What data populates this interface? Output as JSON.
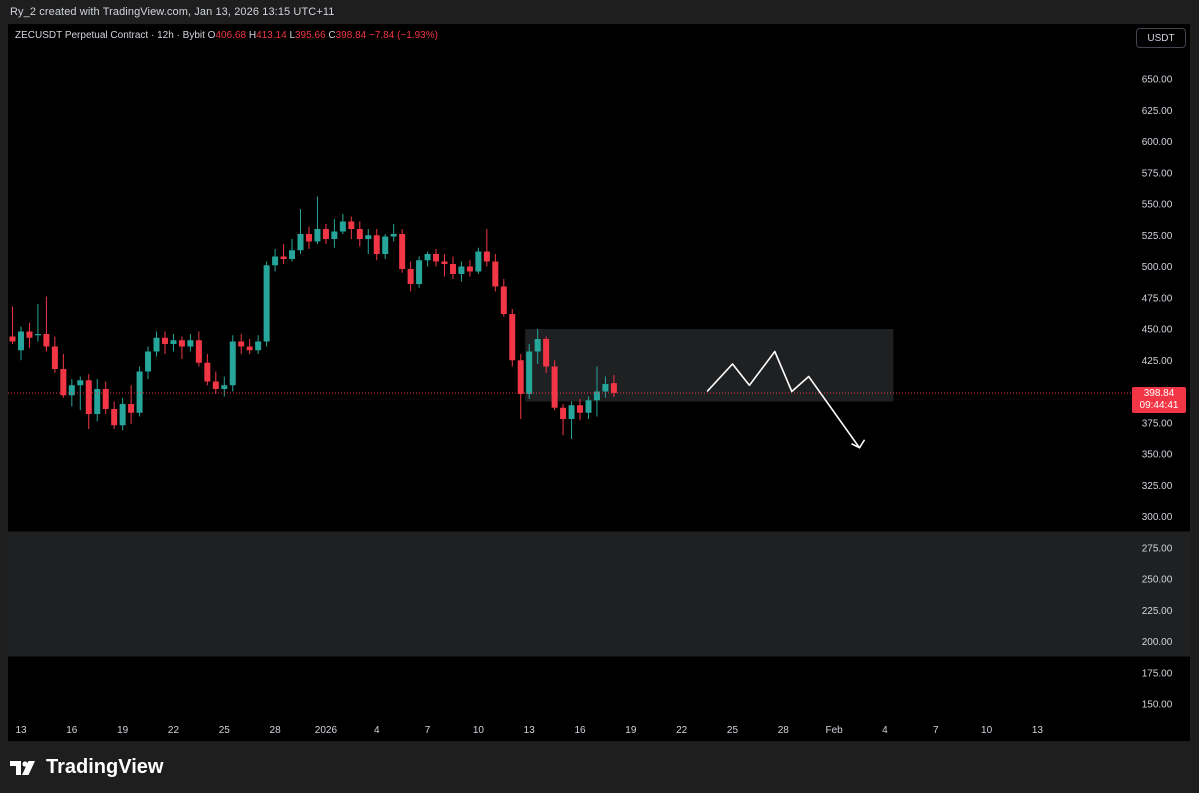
{
  "header": {
    "attribution": "Ry_2 created with TradingView.com, Jan 13, 2026 13:15 UTC+11"
  },
  "legend": {
    "symbol": "ZECUSDT Perpetual Contract · 12h · Bybit",
    "open_label": "O",
    "open": "406.68",
    "high_label": "H",
    "high": "413.14",
    "low_label": "L",
    "low": "395.66",
    "close_label": "C",
    "close": "398.84",
    "change": "−7.84 (−1.93%)"
  },
  "currency_button": "USDT",
  "price_tag": {
    "price": "398.84",
    "countdown": "09:44:41"
  },
  "footer": {
    "logo_text": "TradingView"
  },
  "colors": {
    "up": "#26a69a",
    "down": "#f23645",
    "zone": "#1f2022",
    "background": "#000000"
  },
  "chart_data": {
    "type": "candlestick",
    "interval": "12h",
    "y_axis": {
      "ticks": [
        "650.00",
        "625.00",
        "600.00",
        "575.00",
        "550.00",
        "525.00",
        "500.00",
        "475.00",
        "450.00",
        "425.00",
        "375.00",
        "350.00",
        "325.00",
        "300.00",
        "275.00",
        "250.00",
        "225.00",
        "200.00",
        "175.00",
        "150.00"
      ],
      "ylim": [
        138,
        672
      ]
    },
    "x_axis": {
      "ticks": [
        "13",
        "16",
        "19",
        "22",
        "25",
        "28",
        "2026",
        "4",
        "7",
        "10",
        "13",
        "16",
        "19",
        "22",
        "25",
        "28",
        "Feb",
        "4",
        "7",
        "10",
        "13"
      ],
      "tick_index": [
        0,
        6,
        12,
        18,
        24,
        30,
        36,
        42,
        48,
        54,
        60,
        66,
        72,
        78,
        84,
        90,
        96,
        102,
        108,
        114,
        120
      ]
    },
    "last_price": 398.84,
    "candles": [
      {
        "i": -5,
        "o": 398,
        "h": 425,
        "l": 395,
        "c": 420
      },
      {
        "i": -4,
        "o": 420,
        "h": 432,
        "l": 385,
        "c": 392
      },
      {
        "i": -3,
        "o": 392,
        "h": 432,
        "l": 388,
        "c": 428
      },
      {
        "i": -2,
        "o": 428,
        "h": 448,
        "l": 420,
        "c": 444
      },
      {
        "i": -1,
        "o": 444,
        "h": 468,
        "l": 438,
        "c": 440
      },
      {
        "i": 0,
        "o": 433,
        "h": 452,
        "l": 425,
        "c": 448
      },
      {
        "i": 1,
        "o": 448,
        "h": 455,
        "l": 435,
        "c": 443
      },
      {
        "i": 2,
        "o": 445,
        "h": 470,
        "l": 440,
        "c": 446
      },
      {
        "i": 3,
        "o": 446,
        "h": 476,
        "l": 432,
        "c": 436
      },
      {
        "i": 4,
        "o": 436,
        "h": 444,
        "l": 415,
        "c": 418
      },
      {
        "i": 5,
        "o": 418,
        "h": 430,
        "l": 395,
        "c": 397
      },
      {
        "i": 6,
        "o": 397,
        "h": 410,
        "l": 388,
        "c": 405
      },
      {
        "i": 7,
        "o": 405,
        "h": 412,
        "l": 385,
        "c": 409
      },
      {
        "i": 8,
        "o": 409,
        "h": 414,
        "l": 370,
        "c": 382
      },
      {
        "i": 9,
        "o": 382,
        "h": 410,
        "l": 376,
        "c": 402
      },
      {
        "i": 10,
        "o": 402,
        "h": 408,
        "l": 382,
        "c": 386
      },
      {
        "i": 11,
        "o": 386,
        "h": 392,
        "l": 370,
        "c": 373
      },
      {
        "i": 12,
        "o": 373,
        "h": 395,
        "l": 369,
        "c": 390
      },
      {
        "i": 13,
        "o": 390,
        "h": 405,
        "l": 374,
        "c": 383
      },
      {
        "i": 14,
        "o": 383,
        "h": 420,
        "l": 380,
        "c": 416
      },
      {
        "i": 15,
        "o": 416,
        "h": 436,
        "l": 410,
        "c": 432
      },
      {
        "i": 16,
        "o": 432,
        "h": 448,
        "l": 428,
        "c": 443
      },
      {
        "i": 17,
        "o": 443,
        "h": 448,
        "l": 430,
        "c": 438
      },
      {
        "i": 18,
        "o": 438,
        "h": 446,
        "l": 432,
        "c": 441
      },
      {
        "i": 19,
        "o": 441,
        "h": 444,
        "l": 426,
        "c": 436
      },
      {
        "i": 20,
        "o": 436,
        "h": 446,
        "l": 432,
        "c": 441
      },
      {
        "i": 21,
        "o": 441,
        "h": 448,
        "l": 420,
        "c": 423
      },
      {
        "i": 22,
        "o": 423,
        "h": 430,
        "l": 405,
        "c": 408
      },
      {
        "i": 23,
        "o": 408,
        "h": 416,
        "l": 398,
        "c": 402
      },
      {
        "i": 24,
        "o": 402,
        "h": 412,
        "l": 396,
        "c": 405
      },
      {
        "i": 25,
        "o": 405,
        "h": 445,
        "l": 400,
        "c": 440
      },
      {
        "i": 26,
        "o": 440,
        "h": 446,
        "l": 430,
        "c": 436
      },
      {
        "i": 27,
        "o": 436,
        "h": 442,
        "l": 430,
        "c": 433
      },
      {
        "i": 28,
        "o": 433,
        "h": 445,
        "l": 430,
        "c": 440
      },
      {
        "i": 29,
        "o": 440,
        "h": 504,
        "l": 436,
        "c": 501
      },
      {
        "i": 30,
        "o": 501,
        "h": 514,
        "l": 496,
        "c": 508
      },
      {
        "i": 31,
        "o": 508,
        "h": 518,
        "l": 502,
        "c": 506
      },
      {
        "i": 32,
        "o": 506,
        "h": 522,
        "l": 504,
        "c": 513
      },
      {
        "i": 33,
        "o": 513,
        "h": 546,
        "l": 510,
        "c": 526
      },
      {
        "i": 34,
        "o": 526,
        "h": 532,
        "l": 514,
        "c": 520
      },
      {
        "i": 35,
        "o": 520,
        "h": 556,
        "l": 518,
        "c": 530
      },
      {
        "i": 36,
        "o": 530,
        "h": 534,
        "l": 518,
        "c": 522
      },
      {
        "i": 37,
        "o": 522,
        "h": 538,
        "l": 515,
        "c": 528
      },
      {
        "i": 38,
        "o": 528,
        "h": 542,
        "l": 526,
        "c": 536
      },
      {
        "i": 39,
        "o": 536,
        "h": 540,
        "l": 522,
        "c": 530
      },
      {
        "i": 40,
        "o": 530,
        "h": 536,
        "l": 516,
        "c": 522
      },
      {
        "i": 41,
        "o": 522,
        "h": 530,
        "l": 510,
        "c": 525
      },
      {
        "i": 42,
        "o": 525,
        "h": 530,
        "l": 505,
        "c": 510
      },
      {
        "i": 43,
        "o": 510,
        "h": 526,
        "l": 506,
        "c": 524
      },
      {
        "i": 44,
        "o": 524,
        "h": 534,
        "l": 520,
        "c": 526
      },
      {
        "i": 45,
        "o": 526,
        "h": 530,
        "l": 495,
        "c": 498
      },
      {
        "i": 46,
        "o": 498,
        "h": 504,
        "l": 480,
        "c": 486
      },
      {
        "i": 47,
        "o": 486,
        "h": 508,
        "l": 483,
        "c": 505
      },
      {
        "i": 48,
        "o": 505,
        "h": 512,
        "l": 500,
        "c": 510
      },
      {
        "i": 49,
        "o": 510,
        "h": 514,
        "l": 500,
        "c": 504
      },
      {
        "i": 50,
        "o": 504,
        "h": 510,
        "l": 492,
        "c": 502
      },
      {
        "i": 51,
        "o": 502,
        "h": 508,
        "l": 490,
        "c": 494
      },
      {
        "i": 52,
        "o": 494,
        "h": 504,
        "l": 488,
        "c": 500
      },
      {
        "i": 53,
        "o": 500,
        "h": 505,
        "l": 492,
        "c": 496
      },
      {
        "i": 54,
        "o": 496,
        "h": 515,
        "l": 494,
        "c": 512
      },
      {
        "i": 55,
        "o": 512,
        "h": 530,
        "l": 500,
        "c": 504
      },
      {
        "i": 56,
        "o": 504,
        "h": 510,
        "l": 480,
        "c": 484
      },
      {
        "i": 57,
        "o": 484,
        "h": 490,
        "l": 460,
        "c": 462
      },
      {
        "i": 58,
        "o": 462,
        "h": 466,
        "l": 420,
        "c": 425
      },
      {
        "i": 59,
        "o": 425,
        "h": 430,
        "l": 378,
        "c": 398
      },
      {
        "i": 60,
        "o": 398,
        "h": 438,
        "l": 394,
        "c": 432
      },
      {
        "i": 61,
        "o": 432,
        "h": 450,
        "l": 422,
        "c": 442
      },
      {
        "i": 62,
        "o": 442,
        "h": 444,
        "l": 415,
        "c": 420
      },
      {
        "i": 63,
        "o": 420,
        "h": 425,
        "l": 385,
        "c": 387
      },
      {
        "i": 64,
        "o": 387,
        "h": 390,
        "l": 365,
        "c": 378
      },
      {
        "i": 65,
        "o": 378,
        "h": 392,
        "l": 362,
        "c": 389
      },
      {
        "i": 66,
        "o": 389,
        "h": 394,
        "l": 377,
        "c": 383
      },
      {
        "i": 67,
        "o": 383,
        "h": 396,
        "l": 378,
        "c": 393
      },
      {
        "i": 68,
        "o": 393,
        "h": 420,
        "l": 380,
        "c": 400
      },
      {
        "i": 69,
        "o": 400,
        "h": 412,
        "l": 395,
        "c": 406
      },
      {
        "i": 70,
        "o": 406.68,
        "h": 413.14,
        "l": 395.66,
        "c": 398.84
      }
    ],
    "zones": [
      {
        "i_start": 60,
        "i_end": 103,
        "top": 450,
        "bottom": 392
      },
      {
        "i_start": -6,
        "i_end": 141,
        "top": 288,
        "bottom": 188
      }
    ],
    "projection": [
      {
        "i": 81,
        "v": 400
      },
      {
        "i": 84,
        "v": 422
      },
      {
        "i": 86,
        "v": 405
      },
      {
        "i": 89,
        "v": 432
      },
      {
        "i": 91,
        "v": 400
      },
      {
        "i": 93,
        "v": 412
      },
      {
        "i": 99,
        "v": 355
      }
    ]
  }
}
